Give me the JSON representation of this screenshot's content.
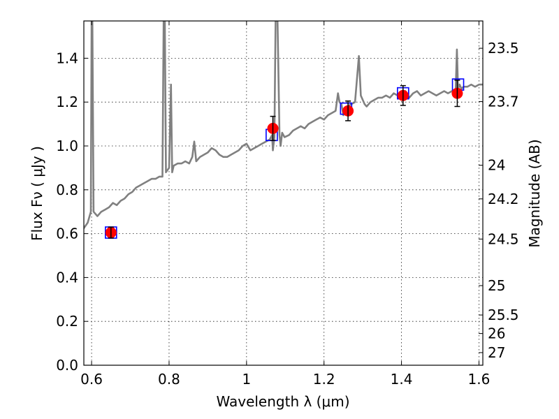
{
  "chart_data": {
    "type": "scatter",
    "title": "",
    "xlabel": "Wavelength  λ (μm)",
    "ylabel": "Flux  Fν  ( μJy )",
    "y2label": "Magnitude (AB)",
    "xlim": [
      0.58,
      1.61
    ],
    "ylim": [
      0.0,
      1.57
    ],
    "grid": true,
    "legend": "none",
    "x_ticks": [
      {
        "value": 0.6,
        "label": "0.6"
      },
      {
        "value": 0.8,
        "label": "0.8"
      },
      {
        "value": 1.0,
        "label": "1"
      },
      {
        "value": 1.2,
        "label": "1.2"
      },
      {
        "value": 1.4,
        "label": "1.4"
      },
      {
        "value": 1.6,
        "label": "1.6"
      }
    ],
    "y_ticks": [
      {
        "value": 0.0,
        "label": "0.0"
      },
      {
        "value": 0.2,
        "label": "0.2"
      },
      {
        "value": 0.4,
        "label": "0.4"
      },
      {
        "value": 0.6,
        "label": "0.6"
      },
      {
        "value": 0.8,
        "label": "0.8"
      },
      {
        "value": 1.0,
        "label": "1.0"
      },
      {
        "value": 1.2,
        "label": "1.2"
      },
      {
        "value": 1.4,
        "label": "1.4"
      }
    ],
    "y2_ticks": [
      {
        "mag": 23.5,
        "label": "23.5"
      },
      {
        "mag": 23.7,
        "label": "23.7"
      },
      {
        "mag": 24,
        "label": "24"
      },
      {
        "mag": 24.2,
        "label": "24.2"
      },
      {
        "mag": 24.5,
        "label": "24.5"
      },
      {
        "mag": 25,
        "label": "25"
      },
      {
        "mag": 25.5,
        "label": "25.5"
      },
      {
        "mag": 26,
        "label": "26"
      },
      {
        "mag": 27,
        "label": "27"
      }
    ],
    "series": [
      {
        "kind": "line",
        "color": "#808080",
        "x": [
          0.578,
          0.59,
          0.598,
          0.6,
          0.602,
          0.605,
          0.615,
          0.625,
          0.635,
          0.645,
          0.655,
          0.665,
          0.675,
          0.685,
          0.695,
          0.705,
          0.715,
          0.725,
          0.735,
          0.745,
          0.755,
          0.765,
          0.775,
          0.783,
          0.786,
          0.789,
          0.792,
          0.796,
          0.8,
          0.805,
          0.808,
          0.812,
          0.822,
          0.832,
          0.842,
          0.852,
          0.86,
          0.865,
          0.87,
          0.88,
          0.89,
          0.9,
          0.91,
          0.92,
          0.93,
          0.94,
          0.95,
          0.96,
          0.97,
          0.98,
          0.99,
          1.0,
          1.01,
          1.02,
          1.03,
          1.04,
          1.05,
          1.06,
          1.066,
          1.068,
          1.072,
          1.075,
          1.08,
          1.085,
          1.088,
          1.092,
          1.098,
          1.11,
          1.12,
          1.13,
          1.14,
          1.15,
          1.16,
          1.17,
          1.18,
          1.19,
          1.2,
          1.21,
          1.22,
          1.23,
          1.236,
          1.24,
          1.245,
          1.25,
          1.26,
          1.27,
          1.28,
          1.29,
          1.295,
          1.3,
          1.305,
          1.31,
          1.32,
          1.33,
          1.34,
          1.35,
          1.36,
          1.37,
          1.38,
          1.39,
          1.4,
          1.41,
          1.42,
          1.43,
          1.44,
          1.45,
          1.46,
          1.47,
          1.48,
          1.49,
          1.5,
          1.51,
          1.52,
          1.53,
          1.54,
          1.543,
          1.546,
          1.55,
          1.555,
          1.56,
          1.57,
          1.58,
          1.59,
          1.6,
          1.61
        ],
        "y": [
          0.62,
          0.65,
          0.7,
          1.57,
          1.57,
          0.7,
          0.68,
          0.7,
          0.71,
          0.72,
          0.74,
          0.73,
          0.75,
          0.76,
          0.78,
          0.79,
          0.81,
          0.82,
          0.83,
          0.84,
          0.85,
          0.85,
          0.86,
          0.86,
          1.57,
          1.57,
          0.88,
          0.89,
          0.9,
          1.28,
          0.88,
          0.91,
          0.92,
          0.92,
          0.93,
          0.92,
          0.95,
          1.02,
          0.93,
          0.95,
          0.96,
          0.97,
          0.99,
          0.98,
          0.96,
          0.95,
          0.95,
          0.96,
          0.97,
          0.98,
          1.0,
          1.01,
          0.98,
          0.99,
          1.0,
          1.01,
          1.02,
          1.03,
          1.05,
          0.98,
          1.04,
          1.57,
          1.57,
          1.05,
          1.0,
          1.06,
          1.04,
          1.05,
          1.07,
          1.08,
          1.09,
          1.08,
          1.1,
          1.11,
          1.12,
          1.13,
          1.12,
          1.14,
          1.15,
          1.16,
          1.24,
          1.2,
          1.19,
          1.14,
          1.18,
          1.19,
          1.2,
          1.41,
          1.23,
          1.21,
          1.19,
          1.18,
          1.2,
          1.21,
          1.22,
          1.22,
          1.23,
          1.22,
          1.24,
          1.23,
          1.24,
          1.25,
          1.22,
          1.24,
          1.25,
          1.23,
          1.24,
          1.25,
          1.24,
          1.23,
          1.24,
          1.25,
          1.24,
          1.25,
          1.26,
          1.44,
          1.26,
          1.28,
          1.26,
          1.27,
          1.27,
          1.28,
          1.27,
          1.28,
          1.28
        ]
      },
      {
        "kind": "squares",
        "color": "#0000ff",
        "x": [
          0.65,
          1.065,
          1.257,
          1.404,
          1.546
        ],
        "y": [
          0.605,
          1.05,
          1.17,
          1.24,
          1.28
        ]
      },
      {
        "kind": "points",
        "color": "#ff0000",
        "x": [
          0.65,
          1.068,
          1.262,
          1.404,
          1.544
        ],
        "y": [
          0.605,
          1.08,
          1.16,
          1.23,
          1.24
        ],
        "yerr": [
          0.025,
          0.055,
          0.045,
          0.045,
          0.06
        ]
      }
    ]
  }
}
